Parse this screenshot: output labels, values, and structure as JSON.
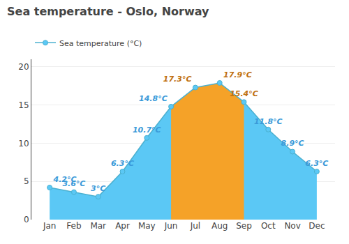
{
  "chart_data": {
    "type": "area",
    "title": "Sea temperature - Oslo, Norway",
    "categories": [
      "Jan",
      "Feb",
      "Mar",
      "Apr",
      "May",
      "Jun",
      "Jul",
      "Aug",
      "Sep",
      "Oct",
      "Nov",
      "Dec"
    ],
    "series": [
      {
        "type": "area",
        "color": "#5bc8f5",
        "values": [
          4.2,
          3.6,
          3.0,
          6.3,
          10.7,
          14.8,
          17.3,
          17.9,
          15.4,
          11.8,
          8.9,
          6.3
        ]
      },
      {
        "type": "area",
        "color": "#f5a228",
        "values": [
          null,
          null,
          null,
          null,
          null,
          14.8,
          17.3,
          17.9,
          15.4,
          null,
          null,
          null
        ]
      },
      {
        "type": "line",
        "name": "Sea temperature (°C)",
        "color": "#4ab0d0",
        "marker": "circle",
        "values": [
          4.2,
          3.6,
          3.0,
          6.3,
          10.7,
          14.8,
          17.3,
          17.9,
          15.4,
          11.8,
          8.9,
          6.3
        ],
        "value_labels": [
          "4.2°C",
          "3.6°C",
          "3°C",
          "6.3°C",
          "10.7°C",
          "14.8°C",
          "17.3°C",
          "17.9°C",
          "15.4°C",
          "11.8°C",
          "8.9°C",
          "6.3°C"
        ],
        "colors": [
          "#3a9ad9",
          "#3a9ad9",
          "#3a9ad9",
          "#3a9ad9",
          "#3a9ad9",
          "#3a9ad9",
          "#c07010",
          "#c07010",
          "#c07010",
          "#3a9ad9",
          "#3a9ad9",
          "#3a9ad9"
        ]
      }
    ],
    "data_labels": true,
    "ylim": [
      0,
      21
    ],
    "yticks": [
      0,
      5,
      10,
      15,
      20
    ],
    "grid": true
  }
}
